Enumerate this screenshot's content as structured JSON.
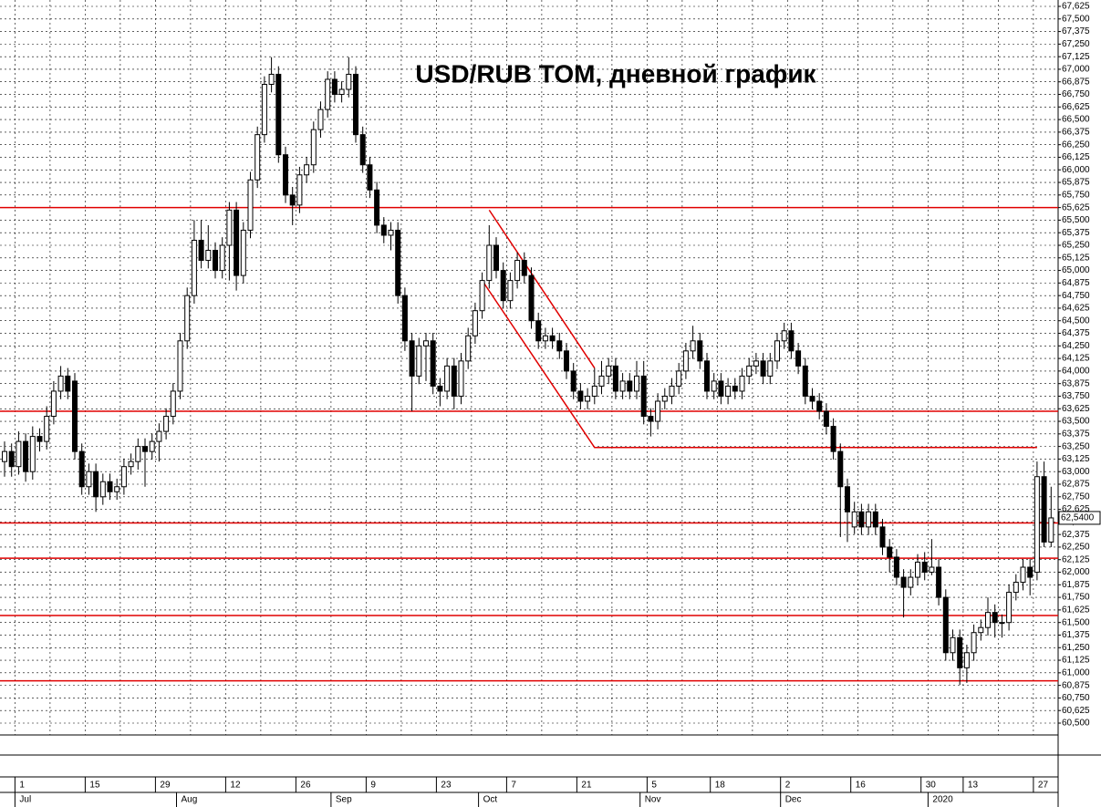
{
  "chart_data": {
    "type": "candlestick",
    "title": "USD/RUB TOM, дневной график",
    "ylim": [
      60.5,
      67.625
    ],
    "yticks": [
      {
        "value": 60.5,
        "label": "60,500"
      },
      {
        "value": 60.625,
        "label": "60,625"
      },
      {
        "value": 60.75,
        "label": "60,750"
      },
      {
        "value": 60.875,
        "label": "60,875"
      },
      {
        "value": 61,
        "label": "61,000"
      },
      {
        "value": 61.125,
        "label": "61,125"
      },
      {
        "value": 61.25,
        "label": "61,250"
      },
      {
        "value": 61.375,
        "label": "61,375"
      },
      {
        "value": 61.5,
        "label": "61,500"
      },
      {
        "value": 61.625,
        "label": "61,625"
      },
      {
        "value": 61.75,
        "label": "61,750"
      },
      {
        "value": 61.875,
        "label": "61,875"
      },
      {
        "value": 62,
        "label": "62,000"
      },
      {
        "value": 62.125,
        "label": "62,125"
      },
      {
        "value": 62.25,
        "label": "62,250"
      },
      {
        "value": 62.375,
        "label": "62,375"
      },
      {
        "value": 62.5,
        "label": "62,500"
      },
      {
        "value": 62.625,
        "label": "62,625"
      },
      {
        "value": 62.75,
        "label": "62,750"
      },
      {
        "value": 62.875,
        "label": "62,875"
      },
      {
        "value": 63,
        "label": "63,000"
      },
      {
        "value": 63.125,
        "label": "63,125"
      },
      {
        "value": 63.25,
        "label": "63,250"
      },
      {
        "value": 63.375,
        "label": "63,375"
      },
      {
        "value": 63.5,
        "label": "63,500"
      },
      {
        "value": 63.625,
        "label": "63,625"
      },
      {
        "value": 63.75,
        "label": "63,750"
      },
      {
        "value": 63.875,
        "label": "63,875"
      },
      {
        "value": 64,
        "label": "64,000"
      },
      {
        "value": 64.125,
        "label": "64,125"
      },
      {
        "value": 64.25,
        "label": "64,250"
      },
      {
        "value": 64.375,
        "label": "64,375"
      },
      {
        "value": 64.5,
        "label": "64,500"
      },
      {
        "value": 64.625,
        "label": "64,625"
      },
      {
        "value": 64.75,
        "label": "64,750"
      },
      {
        "value": 64.875,
        "label": "64,875"
      },
      {
        "value": 65,
        "label": "65,000"
      },
      {
        "value": 65.125,
        "label": "65,125"
      },
      {
        "value": 65.25,
        "label": "65,250"
      },
      {
        "value": 65.375,
        "label": "65,375"
      },
      {
        "value": 65.5,
        "label": "65,500"
      },
      {
        "value": 65.625,
        "label": "65,625"
      },
      {
        "value": 65.75,
        "label": "65,750"
      },
      {
        "value": 65.875,
        "label": "65,875"
      },
      {
        "value": 66,
        "label": "66,000"
      },
      {
        "value": 66.125,
        "label": "66,125"
      },
      {
        "value": 66.25,
        "label": "66,250"
      },
      {
        "value": 66.375,
        "label": "66,375"
      },
      {
        "value": 66.5,
        "label": "66,500"
      },
      {
        "value": 66.625,
        "label": "66,625"
      },
      {
        "value": 66.75,
        "label": "66,750"
      },
      {
        "value": 66.875,
        "label": "66,875"
      },
      {
        "value": 67,
        "label": "67,000"
      },
      {
        "value": 67.125,
        "label": "67,125"
      },
      {
        "value": 67.25,
        "label": "67,250"
      },
      {
        "value": 67.375,
        "label": "67,375"
      },
      {
        "value": 67.5,
        "label": "67,500"
      },
      {
        "value": 67.625,
        "label": "67,625"
      }
    ],
    "grid": true,
    "categories": [
      null,
      null,
      "1",
      null,
      null,
      null,
      null,
      null,
      null,
      null,
      null,
      null,
      "15",
      null,
      null,
      null,
      null,
      null,
      null,
      null,
      null,
      null,
      "29",
      null,
      null,
      null,
      null,
      null,
      null,
      null,
      null,
      null,
      "12",
      null,
      null,
      null,
      null,
      null,
      null,
      null,
      null,
      null,
      "26",
      null,
      null,
      null,
      null,
      null,
      null,
      null,
      null,
      null,
      "9",
      null,
      null,
      null,
      null,
      null,
      null,
      null,
      null,
      null,
      "23",
      null,
      null,
      null,
      null,
      null,
      null,
      null,
      null,
      null,
      "7",
      null,
      null,
      null,
      null,
      null,
      null,
      null,
      null,
      null,
      "21",
      null,
      null,
      null,
      null,
      null,
      null,
      null,
      null,
      null,
      "5",
      null,
      null,
      null,
      null,
      null,
      null,
      null,
      null,
      "18",
      null,
      null,
      null,
      null,
      null,
      null,
      null,
      null,
      null,
      "2",
      null,
      null,
      null,
      null,
      null,
      null,
      null,
      null,
      null,
      "16",
      null,
      null,
      null,
      null,
      null,
      null,
      null,
      null,
      null,
      "30",
      null,
      null,
      null,
      null,
      null,
      "13",
      null,
      null,
      null,
      null,
      null,
      null,
      null,
      null,
      null,
      "27",
      null,
      null
    ],
    "months": [
      null,
      null,
      "Jul",
      null,
      null,
      null,
      null,
      null,
      null,
      null,
      null,
      null,
      null,
      null,
      null,
      null,
      null,
      null,
      null,
      null,
      null,
      null,
      null,
      null,
      null,
      "Aug",
      null,
      null,
      null,
      null,
      null,
      null,
      null,
      null,
      null,
      null,
      null,
      null,
      null,
      null,
      null,
      null,
      null,
      null,
      null,
      null,
      null,
      "Sep",
      null,
      null,
      null,
      null,
      null,
      null,
      null,
      null,
      null,
      null,
      null,
      null,
      null,
      null,
      null,
      null,
      null,
      null,
      null,
      null,
      "Oct",
      null,
      null,
      null,
      null,
      null,
      null,
      null,
      null,
      null,
      null,
      null,
      null,
      null,
      null,
      null,
      null,
      null,
      null,
      null,
      null,
      null,
      null,
      "Nov",
      null,
      null,
      null,
      null,
      null,
      null,
      null,
      null,
      null,
      null,
      null,
      null,
      null,
      null,
      null,
      null,
      null,
      null,
      null,
      "Dec",
      null,
      null,
      null,
      null,
      null,
      null,
      null,
      null,
      null,
      null,
      null,
      null,
      null,
      null,
      null,
      null,
      null,
      null,
      null,
      null,
      "2020",
      null,
      null,
      null,
      null,
      null,
      null,
      null,
      null,
      null,
      null,
      null,
      null,
      null,
      null,
      null,
      null,
      null
    ],
    "candles": [
      [
        63.1,
        63.3,
        62.95,
        63.2
      ],
      [
        63.2,
        63.28,
        62.95,
        63.05
      ],
      [
        63.05,
        63.4,
        62.97,
        63.3
      ],
      [
        63.3,
        63.38,
        62.9,
        63.0
      ],
      [
        63.0,
        63.45,
        62.92,
        63.35
      ],
      [
        63.35,
        63.43,
        63.2,
        63.3
      ],
      [
        63.3,
        63.65,
        63.22,
        63.55
      ],
      [
        63.55,
        63.9,
        63.47,
        63.8
      ],
      [
        63.8,
        64.05,
        63.72,
        63.95
      ],
      [
        63.95,
        64.03,
        63.72,
        63.8
      ],
      [
        63.9,
        63.98,
        63.12,
        63.2
      ],
      [
        63.2,
        63.28,
        62.77,
        62.85
      ],
      [
        62.85,
        63.08,
        62.77,
        63.0
      ],
      [
        63.0,
        63.08,
        62.6,
        62.75
      ],
      [
        62.75,
        62.98,
        62.67,
        62.9
      ],
      [
        62.9,
        62.98,
        62.72,
        62.8
      ],
      [
        62.8,
        62.93,
        62.72,
        62.85
      ],
      [
        62.85,
        63.13,
        62.77,
        63.05
      ],
      [
        63.05,
        63.18,
        62.97,
        63.1
      ],
      [
        63.1,
        63.33,
        63.02,
        63.25
      ],
      [
        63.25,
        63.33,
        62.85,
        63.2
      ],
      [
        63.2,
        63.38,
        63.12,
        63.3
      ],
      [
        63.3,
        63.48,
        63.1,
        63.4
      ],
      [
        63.4,
        63.63,
        63.32,
        63.55
      ],
      [
        63.55,
        63.88,
        63.47,
        63.8
      ],
      [
        63.8,
        64.38,
        63.72,
        64.3
      ],
      [
        64.3,
        64.83,
        64.22,
        64.75
      ],
      [
        64.75,
        65.5,
        64.67,
        65.3
      ],
      [
        65.3,
        65.5,
        65.02,
        65.1
      ],
      [
        65.1,
        65.45,
        65.02,
        65.2
      ],
      [
        65.2,
        65.28,
        64.92,
        65.0
      ],
      [
        65.0,
        65.33,
        64.92,
        65.25
      ],
      [
        65.25,
        65.68,
        64.9,
        65.6
      ],
      [
        65.6,
        65.68,
        64.8,
        64.95
      ],
      [
        64.95,
        65.48,
        64.87,
        65.4
      ],
      [
        65.4,
        65.98,
        65.32,
        65.9
      ],
      [
        65.9,
        66.43,
        65.82,
        66.35
      ],
      [
        66.35,
        66.93,
        66.27,
        66.85
      ],
      [
        66.85,
        67.12,
        66.77,
        66.95
      ],
      [
        66.95,
        67.03,
        66.07,
        66.15
      ],
      [
        66.15,
        66.23,
        65.67,
        65.75
      ],
      [
        65.75,
        65.83,
        65.45,
        65.65
      ],
      [
        65.65,
        66.03,
        65.57,
        65.95
      ],
      [
        65.95,
        66.13,
        65.87,
        66.05
      ],
      [
        66.05,
        66.48,
        65.97,
        66.4
      ],
      [
        66.4,
        66.68,
        66.32,
        66.6
      ],
      [
        66.6,
        66.98,
        66.52,
        66.9
      ],
      [
        66.9,
        66.98,
        66.67,
        66.75
      ],
      [
        66.75,
        66.88,
        66.67,
        66.8
      ],
      [
        66.8,
        67.12,
        66.72,
        66.95
      ],
      [
        66.95,
        67.03,
        66.27,
        66.35
      ],
      [
        66.35,
        66.43,
        65.97,
        66.05
      ],
      [
        66.05,
        66.13,
        65.72,
        65.8
      ],
      [
        65.8,
        65.88,
        65.37,
        65.45
      ],
      [
        65.45,
        65.53,
        65.27,
        65.35
      ],
      [
        65.35,
        65.48,
        65.2,
        65.4
      ],
      [
        65.4,
        65.48,
        64.67,
        64.75
      ],
      [
        64.75,
        64.83,
        64.2,
        64.3
      ],
      [
        64.3,
        64.38,
        63.6,
        63.95
      ],
      [
        63.95,
        64.33,
        63.87,
        64.25
      ],
      [
        64.25,
        64.38,
        63.9,
        64.3
      ],
      [
        64.3,
        64.38,
        63.77,
        63.85
      ],
      [
        63.85,
        63.93,
        63.65,
        63.8
      ],
      [
        63.8,
        64.13,
        63.72,
        64.05
      ],
      [
        64.05,
        64.13,
        63.62,
        63.75
      ],
      [
        63.75,
        64.18,
        63.67,
        64.1
      ],
      [
        64.1,
        64.43,
        64.02,
        64.35
      ],
      [
        64.35,
        64.68,
        64.27,
        64.6
      ],
      [
        64.6,
        64.98,
        64.52,
        64.9
      ],
      [
        64.9,
        65.45,
        64.82,
        65.25
      ],
      [
        65.25,
        65.33,
        64.92,
        65.0
      ],
      [
        65.0,
        65.08,
        64.62,
        64.7
      ],
      [
        64.7,
        64.98,
        64.62,
        64.9
      ],
      [
        64.9,
        65.18,
        64.82,
        65.1
      ],
      [
        65.1,
        65.18,
        64.87,
        64.95
      ],
      [
        64.95,
        65.03,
        64.42,
        64.5
      ],
      [
        64.5,
        64.58,
        64.22,
        64.3
      ],
      [
        64.3,
        64.43,
        64.22,
        64.35
      ],
      [
        64.35,
        64.43,
        64.22,
        64.3
      ],
      [
        64.3,
        64.38,
        64.12,
        64.2
      ],
      [
        64.2,
        64.28,
        63.92,
        64.0
      ],
      [
        64.0,
        64.08,
        63.72,
        63.8
      ],
      [
        63.8,
        63.88,
        63.62,
        63.7
      ],
      [
        63.7,
        63.83,
        63.62,
        63.75
      ],
      [
        63.75,
        64.03,
        63.67,
        63.85
      ],
      [
        63.85,
        64.1,
        63.77,
        63.95
      ],
      [
        63.95,
        64.13,
        63.87,
        64.05
      ],
      [
        64.05,
        64.13,
        63.72,
        63.8
      ],
      [
        63.8,
        63.98,
        63.72,
        63.9
      ],
      [
        63.9,
        63.98,
        63.72,
        63.8
      ],
      [
        63.8,
        64.1,
        63.72,
        63.95
      ],
      [
        63.95,
        64.1,
        63.47,
        63.55
      ],
      [
        63.55,
        63.63,
        63.35,
        63.5
      ],
      [
        63.5,
        63.78,
        63.42,
        63.7
      ],
      [
        63.7,
        63.83,
        63.62,
        63.75
      ],
      [
        63.75,
        63.93,
        63.67,
        63.85
      ],
      [
        63.85,
        64.08,
        63.77,
        64.0
      ],
      [
        64.0,
        64.28,
        63.92,
        64.2
      ],
      [
        64.2,
        64.45,
        64.12,
        64.3
      ],
      [
        64.3,
        64.38,
        64.02,
        64.1
      ],
      [
        64.1,
        64.18,
        63.72,
        63.8
      ],
      [
        63.8,
        63.98,
        63.72,
        63.9
      ],
      [
        63.9,
        63.98,
        63.67,
        63.75
      ],
      [
        63.75,
        63.93,
        63.67,
        63.85
      ],
      [
        63.85,
        63.93,
        63.72,
        63.8
      ],
      [
        63.8,
        64.03,
        63.72,
        63.95
      ],
      [
        63.95,
        64.13,
        63.87,
        64.05
      ],
      [
        64.05,
        64.18,
        63.97,
        64.1
      ],
      [
        64.1,
        64.18,
        63.87,
        63.95
      ],
      [
        63.95,
        64.18,
        63.87,
        64.1
      ],
      [
        64.1,
        64.38,
        64.02,
        64.3
      ],
      [
        64.3,
        64.48,
        64.22,
        64.4
      ],
      [
        64.4,
        64.48,
        64.12,
        64.2
      ],
      [
        64.2,
        64.28,
        63.97,
        64.05
      ],
      [
        64.05,
        64.13,
        63.67,
        63.75
      ],
      [
        63.75,
        63.83,
        63.62,
        63.7
      ],
      [
        63.7,
        63.78,
        63.52,
        63.6
      ],
      [
        63.6,
        63.68,
        63.37,
        63.45
      ],
      [
        63.45,
        63.53,
        63.12,
        63.2
      ],
      [
        63.2,
        63.28,
        62.35,
        62.85
      ],
      [
        62.85,
        62.93,
        62.3,
        62.6
      ],
      [
        62.45,
        62.7,
        62.38,
        62.6
      ],
      [
        62.6,
        62.68,
        62.37,
        62.45
      ],
      [
        62.45,
        62.68,
        62.37,
        62.6
      ],
      [
        62.6,
        62.68,
        62.37,
        62.45
      ],
      [
        62.45,
        62.53,
        62.17,
        62.25
      ],
      [
        62.25,
        62.33,
        62.0,
        62.15
      ],
      [
        62.15,
        62.23,
        61.87,
        61.95
      ],
      [
        61.95,
        62.03,
        61.55,
        61.85
      ],
      [
        61.85,
        62.03,
        61.77,
        61.95
      ],
      [
        61.95,
        62.18,
        61.87,
        62.1
      ],
      [
        62.1,
        62.2,
        61.92,
        62.0
      ],
      [
        62.0,
        62.33,
        61.97,
        62.05
      ],
      [
        62.05,
        62.13,
        61.67,
        61.75
      ],
      [
        61.75,
        61.83,
        61.12,
        61.2
      ],
      [
        61.2,
        61.43,
        61.12,
        61.35
      ],
      [
        61.35,
        61.43,
        60.88,
        61.05
      ],
      [
        61.05,
        61.28,
        60.9,
        61.2
      ],
      [
        61.2,
        61.48,
        61.12,
        61.4
      ],
      [
        61.4,
        61.53,
        61.32,
        61.45
      ],
      [
        61.45,
        61.75,
        61.37,
        61.6
      ],
      [
        61.6,
        61.68,
        61.35,
        61.5
      ],
      [
        61.5,
        61.58,
        61.35,
        61.5
      ],
      [
        61.5,
        61.88,
        61.42,
        61.8
      ],
      [
        61.8,
        61.98,
        61.72,
        61.9
      ],
      [
        61.9,
        62.13,
        61.82,
        62.05
      ],
      [
        62.05,
        62.13,
        61.77,
        61.95
      ],
      [
        62.0,
        63.1,
        61.92,
        62.95
      ],
      [
        62.95,
        63.1,
        62.25,
        62.3
      ],
      [
        62.3,
        62.85,
        62.25,
        62.54
      ]
    ],
    "up_color": "#ffffff",
    "down_color": "#000000",
    "line_color": "#e00000",
    "levels": [
      65.625,
      63.6,
      62.49,
      62.14,
      61.57,
      60.92
    ],
    "trendlines": [
      {
        "x": [
          69,
          84
        ],
        "y": [
          65.6,
          64.03
        ]
      },
      {
        "x": [
          68,
          84,
          147
        ],
        "y": [
          64.9,
          63.24,
          63.24
        ]
      }
    ],
    "last_price": {
      "value": 62.54,
      "label": "62,5400"
    }
  }
}
